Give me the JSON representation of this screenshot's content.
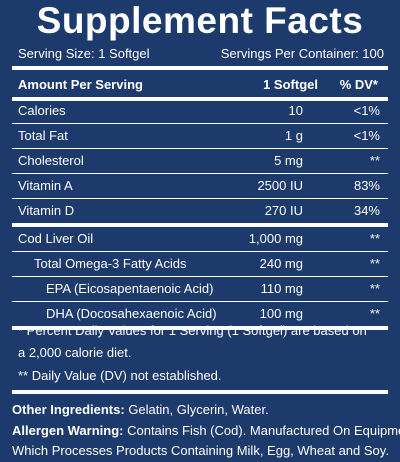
{
  "header": {
    "title": "Supplement Facts",
    "serving_size": "Serving Size: 1 Softgel",
    "servings_per_container": "Servings Per Container: 100"
  },
  "table": {
    "columns": [
      "Amount Per Serving",
      "1 Softgel",
      "% DV*"
    ],
    "rows": [
      [
        "Calories",
        "10",
        "<1%"
      ],
      [
        "Total Fat",
        "1 g",
        "<1%"
      ],
      [
        "Cholesterol",
        "5 mg",
        "**"
      ],
      [
        "Vitamin A",
        "2500 IU",
        "83%"
      ],
      [
        "Vitamin D",
        "270 IU",
        "34%"
      ],
      [
        "Cod Liver Oil",
        "1,000 mg",
        "**"
      ],
      [
        "Total Omega-3 Fatty Acids",
        "240 mg",
        "**"
      ],
      [
        "EPA (Eicosapentaenoic Acid)",
        "110 mg",
        "**"
      ],
      [
        "DHA (Docosahexaenoic Acid)",
        "100 mg",
        "**"
      ]
    ]
  },
  "footnotes": [
    "* Percent Daily Values for 1 Serving (1 Softgel) are based on",
    "a 2,000 calorie diet.",
    "** Daily Value (DV) not established."
  ],
  "other_ingredients": {
    "label": "Other Ingredients:",
    "text": "Gelatin, Glycerin, Water."
  },
  "allergen_warning": {
    "label": "Allergen Warning:",
    "lines": [
      "Contains Fish (Cod). Manufactured On Equipment",
      "Which Processes Products Containing Milk, Egg, Wheat and Soy."
    ]
  }
}
